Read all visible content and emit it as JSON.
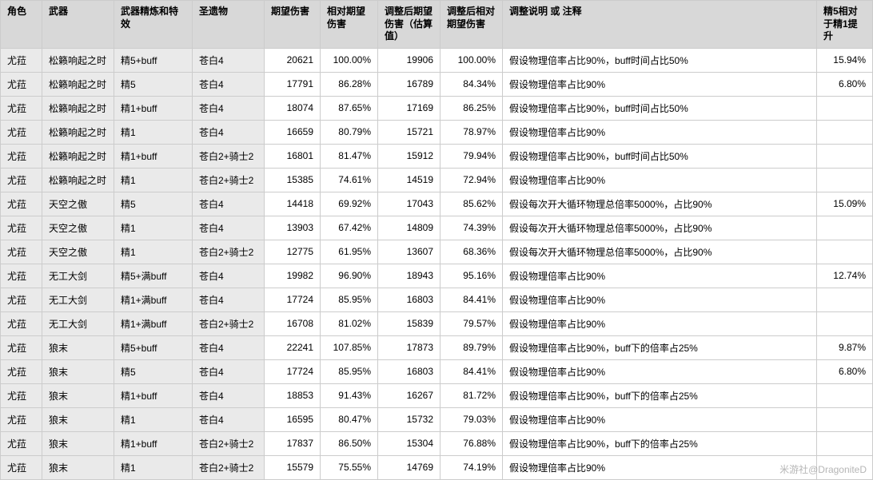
{
  "columns": [
    "角色",
    "武器",
    "武器精炼和特效",
    "圣遗物",
    "期望伤害",
    "相对期望伤害",
    "调整后期望伤害（估算值）",
    "调整后相对期望伤害",
    "调整说明 或 注释",
    "精5相对于精1提升"
  ],
  "rows": [
    [
      "尤菈",
      "松籁响起之时",
      "精5+buff",
      "苍白4",
      "20621",
      "100.00%",
      "19906",
      "100.00%",
      "假设物理倍率占比90%，buff时间占比50%",
      "15.94%"
    ],
    [
      "尤菈",
      "松籁响起之时",
      "精5",
      "苍白4",
      "17791",
      "86.28%",
      "16789",
      "84.34%",
      "假设物理倍率占比90%",
      "6.80%"
    ],
    [
      "尤菈",
      "松籁响起之时",
      "精1+buff",
      "苍白4",
      "18074",
      "87.65%",
      "17169",
      "86.25%",
      "假设物理倍率占比90%，buff时间占比50%",
      ""
    ],
    [
      "尤菈",
      "松籁响起之时",
      "精1",
      "苍白4",
      "16659",
      "80.79%",
      "15721",
      "78.97%",
      "假设物理倍率占比90%",
      ""
    ],
    [
      "尤菈",
      "松籁响起之时",
      "精1+buff",
      "苍白2+骑士2",
      "16801",
      "81.47%",
      "15912",
      "79.94%",
      "假设物理倍率占比90%，buff时间占比50%",
      ""
    ],
    [
      "尤菈",
      "松籁响起之时",
      "精1",
      "苍白2+骑士2",
      "15385",
      "74.61%",
      "14519",
      "72.94%",
      "假设物理倍率占比90%",
      ""
    ],
    [
      "尤菈",
      "天空之傲",
      "精5",
      "苍白4",
      "14418",
      "69.92%",
      "17043",
      "85.62%",
      "假设每次开大循环物理总倍率5000%，占比90%",
      "15.09%"
    ],
    [
      "尤菈",
      "天空之傲",
      "精1",
      "苍白4",
      "13903",
      "67.42%",
      "14809",
      "74.39%",
      "假设每次开大循环物理总倍率5000%，占比90%",
      ""
    ],
    [
      "尤菈",
      "天空之傲",
      "精1",
      "苍白2+骑士2",
      "12775",
      "61.95%",
      "13607",
      "68.36%",
      "假设每次开大循环物理总倍率5000%，占比90%",
      ""
    ],
    [
      "尤菈",
      "无工大剑",
      "精5+满buff",
      "苍白4",
      "19982",
      "96.90%",
      "18943",
      "95.16%",
      "假设物理倍率占比90%",
      "12.74%"
    ],
    [
      "尤菈",
      "无工大剑",
      "精1+满buff",
      "苍白4",
      "17724",
      "85.95%",
      "16803",
      "84.41%",
      "假设物理倍率占比90%",
      ""
    ],
    [
      "尤菈",
      "无工大剑",
      "精1+满buff",
      "苍白2+骑士2",
      "16708",
      "81.02%",
      "15839",
      "79.57%",
      "假设物理倍率占比90%",
      ""
    ],
    [
      "尤菈",
      "狼末",
      "精5+buff",
      "苍白4",
      "22241",
      "107.85%",
      "17873",
      "89.79%",
      "假设物理倍率占比90%，buff下的倍率占25%",
      "9.87%"
    ],
    [
      "尤菈",
      "狼末",
      "精5",
      "苍白4",
      "17724",
      "85.95%",
      "16803",
      "84.41%",
      "假设物理倍率占比90%",
      "6.80%"
    ],
    [
      "尤菈",
      "狼末",
      "精1+buff",
      "苍白4",
      "18853",
      "91.43%",
      "16267",
      "81.72%",
      "假设物理倍率占比90%，buff下的倍率占25%",
      ""
    ],
    [
      "尤菈",
      "狼末",
      "精1",
      "苍白4",
      "16595",
      "80.47%",
      "15732",
      "79.03%",
      "假设物理倍率占比90%",
      ""
    ],
    [
      "尤菈",
      "狼末",
      "精1+buff",
      "苍白2+骑士2",
      "17837",
      "86.50%",
      "15304",
      "76.88%",
      "假设物理倍率占比90%，buff下的倍率占25%",
      ""
    ],
    [
      "尤菈",
      "狼末",
      "精1",
      "苍白2+骑士2",
      "15579",
      "75.55%",
      "14769",
      "74.19%",
      "假设物理倍率占比90%",
      ""
    ]
  ],
  "colClasses": [
    "col-role",
    "col-weapon",
    "col-refine",
    "col-art",
    "col-dmg",
    "col-rel",
    "col-adj",
    "col-adjrel",
    "col-note",
    "col-r5"
  ],
  "greyCols": [
    0,
    1,
    2,
    3
  ],
  "numCols": [
    4,
    5,
    6,
    7,
    9
  ],
  "watermark": "米游社@DragoniteD"
}
